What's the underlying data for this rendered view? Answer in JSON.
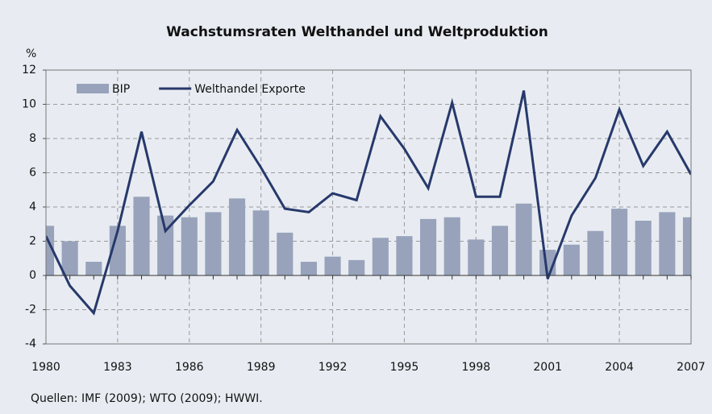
{
  "chart_data": {
    "type": "bar",
    "title": "Wachstumsraten Welthandel und Weltproduktion",
    "y_label": "%",
    "note": "Quellen: IMF (2009); WTO (2009); HWWI.",
    "x": [
      1980,
      1981,
      1982,
      1983,
      1984,
      1985,
      1986,
      1987,
      1988,
      1989,
      1990,
      1991,
      1992,
      1993,
      1994,
      1995,
      1996,
      1997,
      1998,
      1999,
      2000,
      2001,
      2002,
      2003,
      2004,
      2005,
      2006,
      2007
    ],
    "series": [
      {
        "name": "BIP",
        "type": "bar",
        "color": "#98a3bb",
        "values": [
          2.9,
          2.0,
          0.8,
          2.9,
          4.6,
          3.5,
          3.4,
          3.7,
          4.5,
          3.8,
          2.5,
          0.8,
          1.1,
          0.9,
          2.2,
          2.3,
          3.3,
          3.4,
          2.1,
          2.9,
          4.2,
          1.5,
          1.8,
          2.6,
          3.9,
          3.2,
          3.7,
          3.4
        ]
      },
      {
        "name": "Welthandel Exporte",
        "type": "line",
        "color": "#27396b",
        "values": [
          2.3,
          -0.6,
          -2.2,
          2.6,
          8.4,
          2.6,
          4.1,
          5.5,
          8.5,
          6.3,
          3.9,
          3.7,
          4.8,
          4.4,
          9.3,
          7.4,
          5.1,
          10.1,
          4.6,
          4.6,
          10.8,
          -0.2,
          3.5,
          5.7,
          9.7,
          6.4,
          8.4,
          5.9
        ]
      }
    ],
    "xlim": [
      1980,
      2007
    ],
    "xticks": [
      1980,
      1983,
      1986,
      1989,
      1992,
      1995,
      1998,
      2001,
      2004,
      2007
    ],
    "ylim": [
      -4,
      12
    ],
    "yticks": [
      -4,
      -2,
      0,
      2,
      4,
      6,
      8,
      10,
      12
    ],
    "grid": true,
    "legend": "top-left"
  }
}
